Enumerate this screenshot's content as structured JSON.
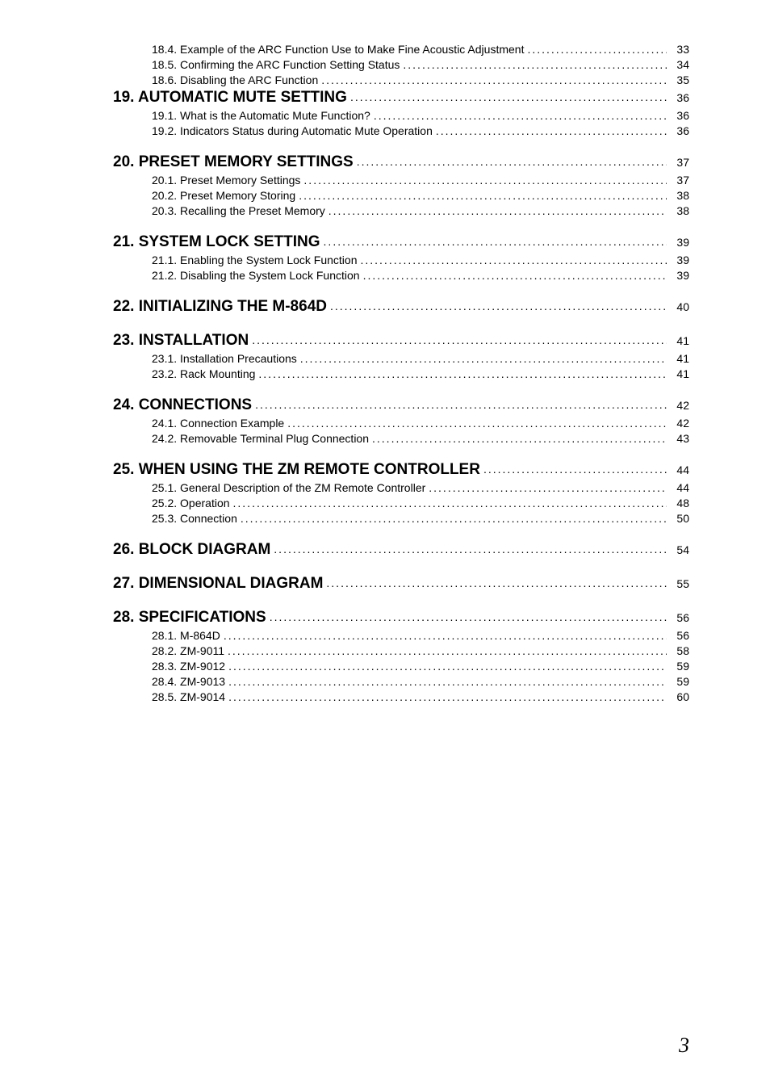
{
  "dots": "............................................................................................................................................................................................",
  "toc": [
    {
      "type": "sub",
      "label": "18.4. Example of the ARC Function Use to Make Fine Acoustic Adjustment",
      "page": "33"
    },
    {
      "type": "sub",
      "label": "18.5. Confirming the ARC Function Setting Status",
      "page": "34"
    },
    {
      "type": "sub",
      "label": "18.6. Disabling the ARC Function",
      "page": "35"
    },
    {
      "type": "h1",
      "label": "19. AUTOMATIC MUTE SETTING",
      "page": "36"
    },
    {
      "type": "sub",
      "label": "19.1. What is the Automatic Mute Function?",
      "page": "36"
    },
    {
      "type": "sub",
      "label": "19.2. Indicators Status during Automatic Mute Operation",
      "page": "36"
    },
    {
      "type": "h1",
      "label": "20. PRESET MEMORY SETTINGS",
      "page": "37"
    },
    {
      "type": "sub",
      "label": "20.1. Preset Memory Settings",
      "page": "37"
    },
    {
      "type": "sub",
      "label": "20.2. Preset Memory Storing",
      "page": "38"
    },
    {
      "type": "sub",
      "label": "20.3. Recalling the Preset Memory",
      "page": "38"
    },
    {
      "type": "h1",
      "label": "21. SYSTEM LOCK SETTING",
      "page": "39"
    },
    {
      "type": "sub",
      "label": "21.1. Enabling the System Lock Function",
      "page": "39"
    },
    {
      "type": "sub",
      "label": "21.2. Disabling the System Lock Function",
      "page": "39"
    },
    {
      "type": "h1",
      "label": "22. INITIALIZING THE M-864D",
      "page": "40"
    },
    {
      "type": "h1",
      "label": "23. INSTALLATION",
      "page": "41"
    },
    {
      "type": "sub",
      "label": "23.1. Installation Precautions",
      "page": "41"
    },
    {
      "type": "sub",
      "label": "23.2. Rack Mounting",
      "page": "41"
    },
    {
      "type": "h1",
      "label": "24. CONNECTIONS",
      "page": "42"
    },
    {
      "type": "sub",
      "label": "24.1. Connection Example",
      "page": "42"
    },
    {
      "type": "sub",
      "label": "24.2. Removable Terminal Plug Connection",
      "page": "43"
    },
    {
      "type": "h1",
      "label": "25. WHEN USING THE ZM REMOTE CONTROLLER",
      "page": "44"
    },
    {
      "type": "sub",
      "label": "25.1. General Description of the ZM Remote Controller",
      "page": "44"
    },
    {
      "type": "sub",
      "label": "25.2. Operation",
      "page": "48"
    },
    {
      "type": "sub",
      "label": "25.3. Connection",
      "page": "50"
    },
    {
      "type": "h1",
      "label": "26. BLOCK DIAGRAM",
      "page": "54"
    },
    {
      "type": "h1",
      "label": "27. DIMENSIONAL DIAGRAM",
      "page": "55"
    },
    {
      "type": "h1",
      "label": "28. SPECIFICATIONS",
      "page": "56"
    },
    {
      "type": "sub",
      "label": "28.1. M-864D",
      "page": "56"
    },
    {
      "type": "sub",
      "label": "28.2. ZM-9011",
      "page": "58"
    },
    {
      "type": "sub",
      "label": "28.3. ZM-9012",
      "page": "59"
    },
    {
      "type": "sub",
      "label": "28.4. ZM-9013",
      "page": "59"
    },
    {
      "type": "sub",
      "label": "28.5. ZM-9014",
      "page": "60"
    }
  ],
  "footerPage": "3"
}
